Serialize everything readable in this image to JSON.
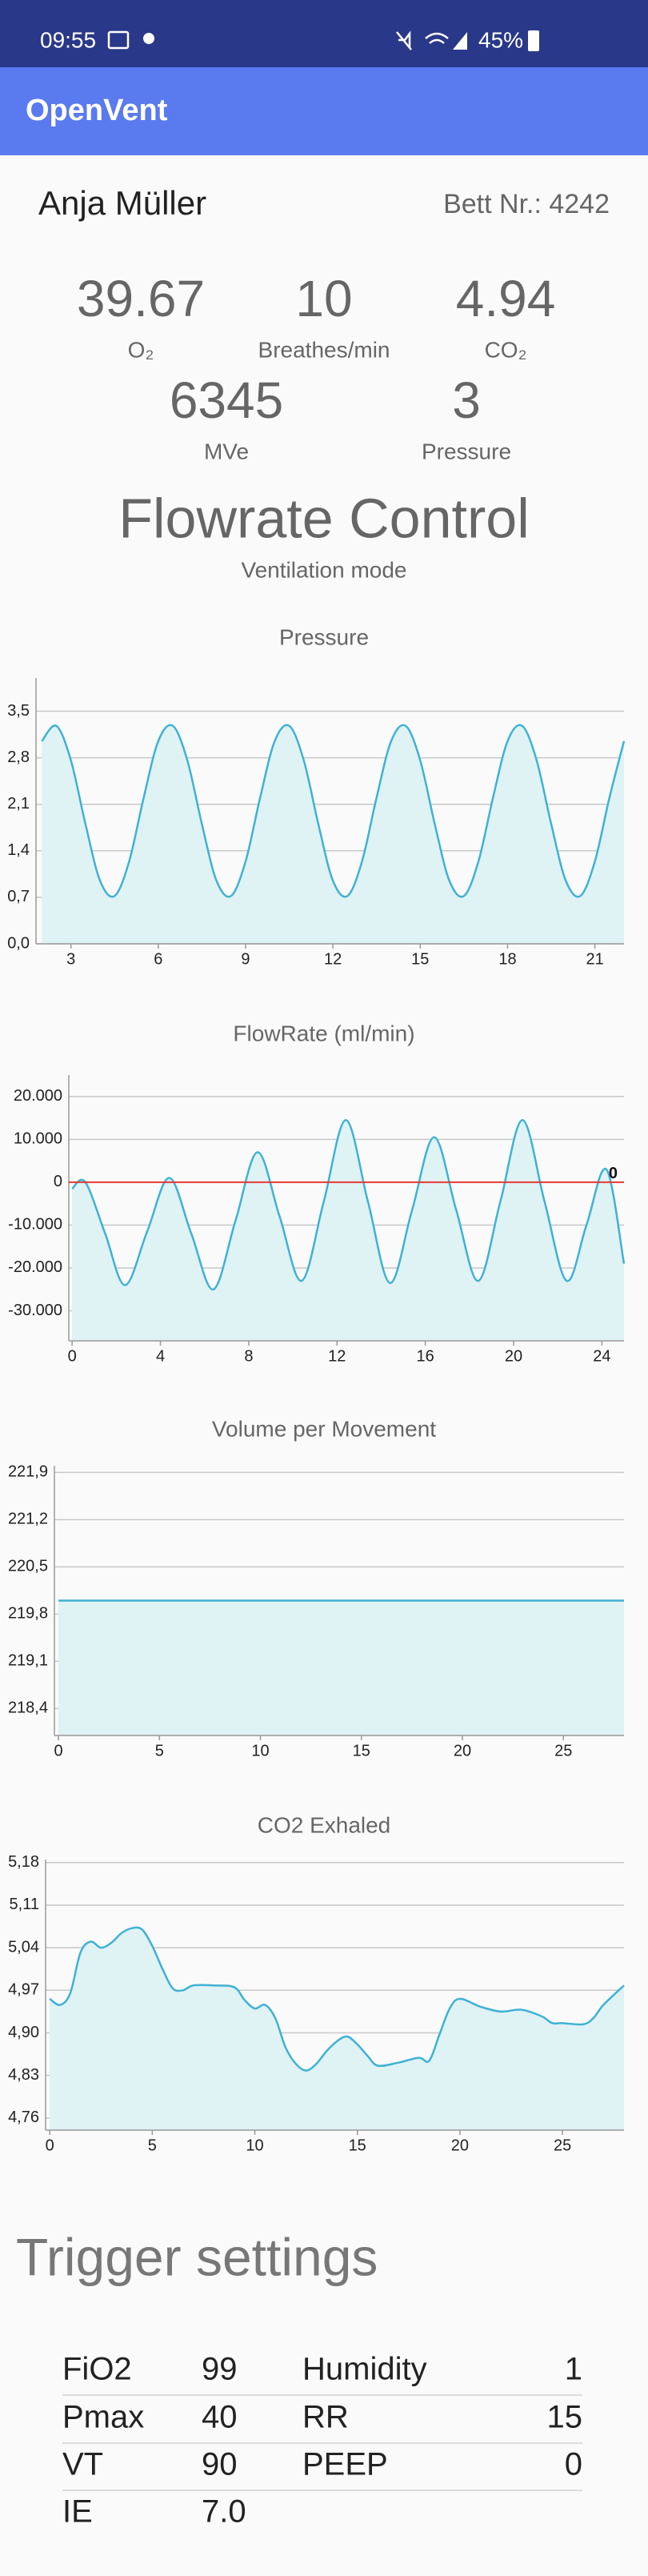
{
  "status_bar": {
    "time": "09:55",
    "battery": "45%"
  },
  "app_bar": {
    "title": "OpenVent"
  },
  "patient": {
    "name": "Anja Müller",
    "bed": "Bett Nr.: 4242"
  },
  "metrics": [
    {
      "value": "39.67",
      "label": "O₂"
    },
    {
      "value": "10",
      "label": "Breathes/min"
    },
    {
      "value": "4.94",
      "label": "CO₂"
    },
    {
      "value": "6345",
      "label": "MVe"
    },
    {
      "value": "3",
      "label": "Pressure"
    }
  ],
  "mode": {
    "value": "Flowrate Control",
    "label": "Ventilation mode"
  },
  "chart_data": [
    {
      "type": "area",
      "title": "Pressure",
      "color": "#3fb2d4",
      "fill": "#dff2f4",
      "x": [
        2,
        2.5,
        3,
        3.5,
        4,
        4.5,
        5,
        5.5,
        6,
        6.5,
        7,
        7.5,
        8,
        8.5,
        9,
        9.5,
        10,
        10.5,
        11,
        11.5,
        12,
        12.5,
        13,
        13.5,
        14,
        14.5,
        15,
        15.5,
        16,
        16.5,
        17,
        17.5,
        18,
        18.5,
        19,
        19.5,
        20,
        20.5,
        21,
        21.5,
        22
      ],
      "values": [
        3.05,
        3.28,
        2.76,
        1.8,
        0.95,
        0.72,
        1.24,
        2.2,
        3.05,
        3.28,
        2.76,
        1.8,
        0.95,
        0.72,
        1.24,
        2.2,
        3.05,
        3.28,
        2.76,
        1.8,
        0.95,
        0.72,
        1.24,
        2.2,
        3.05,
        3.28,
        2.76,
        1.8,
        0.95,
        0.72,
        1.24,
        2.2,
        3.05,
        3.28,
        2.76,
        1.8,
        0.95,
        0.72,
        1.24,
        2.2,
        3.05
      ],
      "xlim": [
        1.8,
        22
      ],
      "xticks": [
        3,
        6,
        9,
        12,
        15,
        18,
        21
      ],
      "ylim": [
        0,
        4.0
      ],
      "yticks": [
        {
          "value": 0,
          "label": "0,0"
        },
        {
          "value": 0.7,
          "label": "0,7"
        },
        {
          "value": 1.4,
          "label": "1,4"
        },
        {
          "value": 2.1,
          "label": "2,1"
        },
        {
          "value": 2.8,
          "label": "2,8"
        },
        {
          "value": 3.5,
          "label": "3,5"
        }
      ],
      "grid": true
    },
    {
      "type": "area",
      "title": "FlowRate (ml/min)",
      "color": "#3fb2d4",
      "fill": "#dff2f4",
      "x": [
        0,
        0.6,
        1.5,
        2.4,
        3.4,
        4.4,
        5.4,
        6.4,
        7.4,
        8.4,
        9.4,
        10.4,
        11.4,
        12.4,
        13.4,
        14.4,
        15.4,
        16.4,
        17.4,
        18.4,
        19.4,
        20.4,
        21.4,
        22.4,
        23.3,
        24.2,
        25
      ],
      "values": [
        -1500,
        0,
        -12000,
        -24000,
        -11500,
        1000,
        -12000,
        -25000,
        -9000,
        7000,
        -8000,
        -23000,
        -4500,
        14500,
        -4500,
        -23500,
        -6500,
        10500,
        -6500,
        -23000,
        -4500,
        14500,
        -4500,
        -23000,
        -10000,
        3000,
        -19000
      ],
      "xlim": [
        -0.15,
        25
      ],
      "xticks": [
        0,
        4,
        8,
        12,
        16,
        20,
        24
      ],
      "ylim": [
        -37000,
        25000
      ],
      "yticks": [
        {
          "value": -30000,
          "label": "-30.000"
        },
        {
          "value": -20000,
          "label": "-20.000"
        },
        {
          "value": -10000,
          "label": "-10.000"
        },
        0,
        {
          "value": 10000,
          "label": "10.000"
        },
        {
          "value": 20000,
          "label": "20.000"
        }
      ],
      "limit_line": 0,
      "limit_color": "#e53935",
      "grid": true
    },
    {
      "type": "area",
      "title": "Volume per Movement",
      "color": "#3fb2d4",
      "fill": "#dff2f4",
      "x": [
        0,
        14,
        28
      ],
      "values": [
        220.0,
        220.0,
        220.0
      ],
      "xlim": [
        -0.2,
        28
      ],
      "xticks": [
        0,
        5,
        10,
        15,
        20,
        25
      ],
      "ylim": [
        218.0,
        222.0
      ],
      "yticks": [
        {
          "value": 218.4,
          "label": "218,4"
        },
        {
          "value": 219.1,
          "label": "219,1"
        },
        {
          "value": 219.8,
          "label": "219,8"
        },
        {
          "value": 220.5,
          "label": "220,5"
        },
        {
          "value": 221.2,
          "label": "221,2"
        },
        {
          "value": 221.9,
          "label": "221,9"
        }
      ],
      "grid": true
    },
    {
      "type": "area",
      "title": "CO2 Exhaled",
      "color": "#3fb2d4",
      "fill": "#dff2f4",
      "x": [
        0,
        0.5,
        1,
        1.5,
        2,
        2.5,
        3,
        3.5,
        4,
        4.5,
        5,
        5.5,
        6,
        6.5,
        7,
        8,
        9,
        9.5,
        10,
        10.5,
        11,
        11.5,
        12,
        12.5,
        13,
        13.5,
        14,
        14.5,
        15,
        15.5,
        16,
        17,
        18,
        18.5,
        19,
        19.5,
        20,
        21,
        22,
        23,
        24,
        24.5,
        25,
        26,
        26.5,
        27,
        28
      ],
      "values": [
        4.956,
        4.946,
        4.965,
        5.032,
        5.05,
        5.04,
        5.048,
        5.064,
        5.072,
        5.07,
        5.043,
        5.005,
        4.973,
        4.97,
        4.978,
        4.978,
        4.975,
        4.954,
        4.94,
        4.946,
        4.924,
        4.876,
        4.849,
        4.838,
        4.849,
        4.87,
        4.886,
        4.894,
        4.881,
        4.862,
        4.846,
        4.851,
        4.859,
        4.854,
        4.897,
        4.94,
        4.956,
        4.943,
        4.935,
        4.938,
        4.927,
        4.916,
        4.916,
        4.914,
        4.924,
        4.946,
        4.978
      ],
      "xlim": [
        -0.2,
        28
      ],
      "xticks": [
        0,
        5,
        10,
        15,
        20,
        25
      ],
      "ylim": [
        4.74,
        5.185
      ],
      "yticks": [
        {
          "value": 4.76,
          "label": "4,76"
        },
        {
          "value": 4.83,
          "label": "4,83"
        },
        {
          "value": 4.9,
          "label": "4,90"
        },
        {
          "value": 4.97,
          "label": "4,97"
        },
        {
          "value": 5.04,
          "label": "5,04"
        },
        {
          "value": 5.11,
          "label": "5,11"
        },
        {
          "value": 5.18,
          "label": "5,18"
        }
      ],
      "grid": true
    }
  ],
  "trigger_settings": {
    "title": "Trigger settings",
    "rows": [
      [
        "FiO2",
        "99",
        "Humidity",
        "1"
      ],
      [
        "Pmax",
        "40",
        "RR",
        "15"
      ],
      [
        "VT",
        "90",
        "PEEP",
        "0"
      ],
      [
        "IE",
        "7.0"
      ]
    ]
  }
}
